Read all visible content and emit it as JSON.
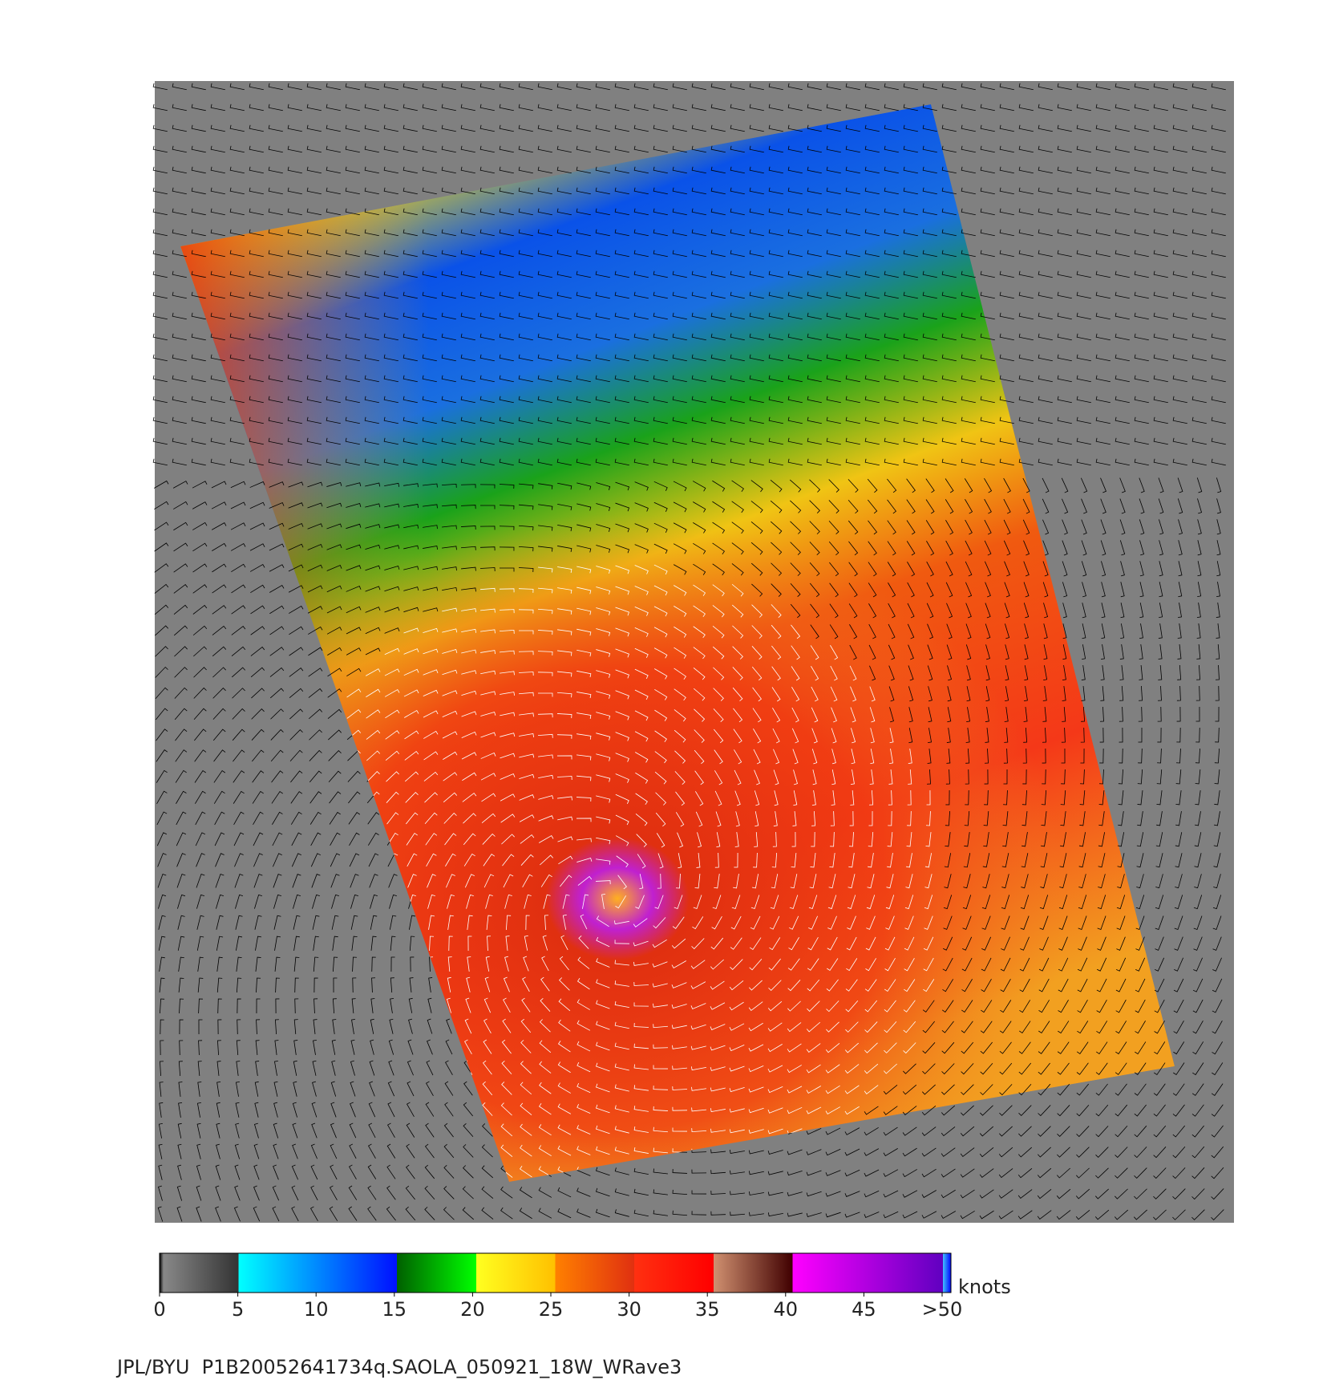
{
  "chart_data": {
    "type": "colorbar",
    "title": "JPL/BYU  P1B20052641734q.SAOLA_050921_18W_WRave3",
    "unit_label": "knots",
    "xlim": [
      0,
      50
    ],
    "xticks": [
      0,
      5,
      10,
      15,
      20,
      25,
      30,
      35,
      40,
      45,
      {
        "value": 50,
        "label": ">50"
      }
    ]
  }
}
